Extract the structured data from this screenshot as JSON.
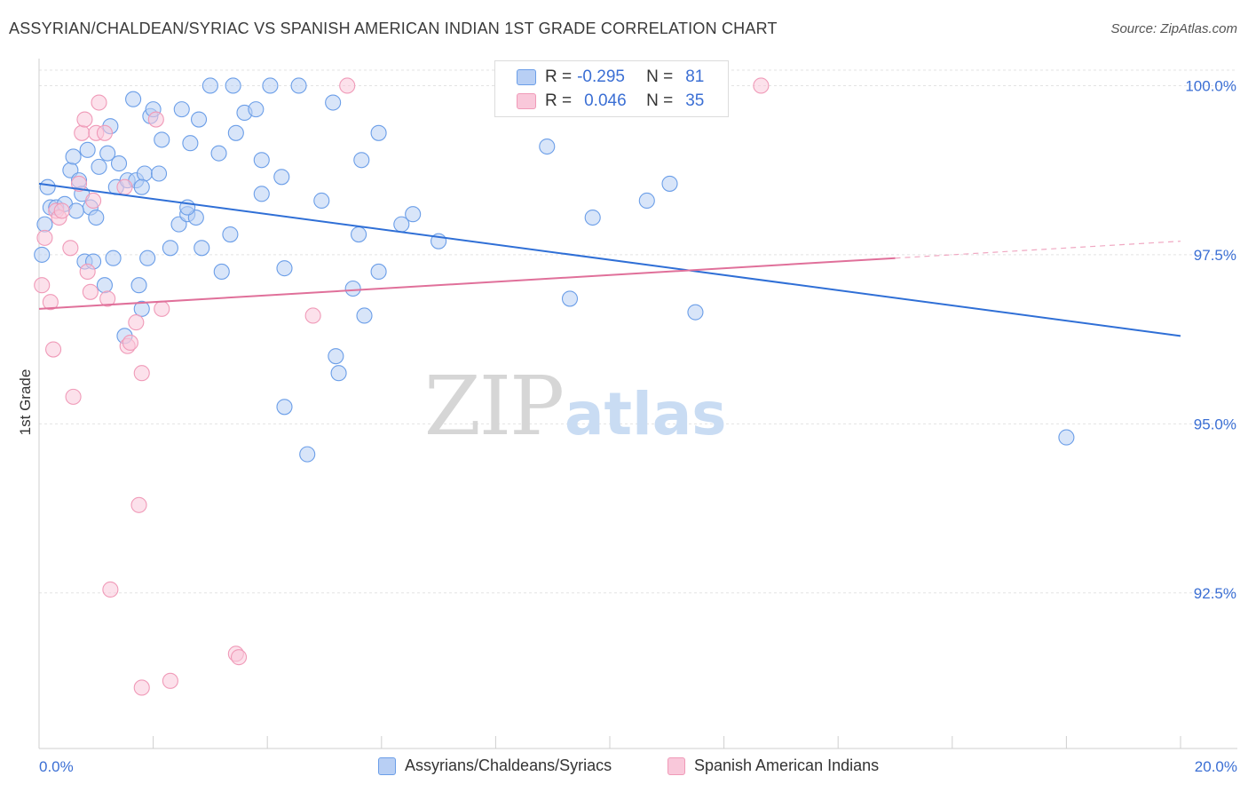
{
  "title": "ASSYRIAN/CHALDEAN/SYRIAC VS SPANISH AMERICAN INDIAN 1ST GRADE CORRELATION CHART",
  "source": "Source: ZipAtlas.com",
  "watermark": {
    "zip": "ZIP",
    "atlas": "atlas"
  },
  "stats": {
    "rows": [
      {
        "r_label": "R =",
        "r_value": "-0.295",
        "n_label": "N =",
        "n_value": "81",
        "color": "#6b9ee8",
        "fill": "#b8cff4"
      },
      {
        "r_label": "R =",
        "r_value": "0.046",
        "n_label": "N =",
        "n_value": "35",
        "color": "#f09ab8",
        "fill": "#f9c8da"
      }
    ]
  },
  "legend": {
    "items": [
      {
        "label": "Assyrians/Chaldeans/Syriacs",
        "color": "#6b9ee8",
        "fill": "#b8cff4"
      },
      {
        "label": "Spanish American Indians",
        "color": "#f09ab8",
        "fill": "#f9c8da"
      }
    ]
  },
  "chart_data": {
    "type": "scatter",
    "title": "ASSYRIAN/CHALDEAN/SYRIAC VS SPANISH AMERICAN INDIAN 1ST GRADE CORRELATION CHART",
    "xlabel": "",
    "ylabel": "1st Grade",
    "xlim": [
      0,
      20
    ],
    "ylim": [
      90.2,
      100.4
    ],
    "x_tick_labels": [
      {
        "value": 0,
        "label": "0.0%"
      },
      {
        "value": 20,
        "label": "20.0%"
      }
    ],
    "y_tick_labels": [
      {
        "value": 100,
        "label": "100.0%"
      },
      {
        "value": 97.5,
        "label": "97.5%"
      },
      {
        "value": 95,
        "label": "95.0%"
      },
      {
        "value": 92.5,
        "label": "92.5%"
      }
    ],
    "x_minor_ticks": [
      0,
      2,
      4,
      6,
      8,
      10,
      12,
      14,
      16,
      18,
      20
    ],
    "series": [
      {
        "name": "Assyrians/Chaldeans/Syriacs",
        "color": "#6b9ee8",
        "fill": "#b8cff4",
        "trend": {
          "x0": 0,
          "y0": 98.55,
          "x1": 20,
          "y1": 96.3
        },
        "points": [
          [
            0.15,
            98.5
          ],
          [
            0.2,
            98.2
          ],
          [
            0.3,
            98.2
          ],
          [
            0.45,
            98.25
          ],
          [
            0.55,
            98.75
          ],
          [
            0.6,
            98.95
          ],
          [
            0.7,
            98.6
          ],
          [
            0.75,
            98.4
          ],
          [
            0.8,
            97.4
          ],
          [
            0.85,
            99.05
          ],
          [
            0.9,
            98.2
          ],
          [
            0.95,
            97.4
          ],
          [
            1.0,
            98.05
          ],
          [
            1.05,
            98.8
          ],
          [
            1.15,
            97.05
          ],
          [
            1.2,
            99.0
          ],
          [
            1.25,
            99.4
          ],
          [
            1.3,
            97.45
          ],
          [
            1.35,
            98.5
          ],
          [
            1.4,
            98.85
          ],
          [
            1.5,
            96.3
          ],
          [
            1.55,
            98.6
          ],
          [
            1.65,
            99.8
          ],
          [
            1.7,
            98.6
          ],
          [
            1.75,
            97.05
          ],
          [
            1.8,
            96.7
          ],
          [
            1.85,
            98.7
          ],
          [
            1.9,
            97.45
          ],
          [
            1.95,
            99.55
          ],
          [
            2.0,
            99.65
          ],
          [
            2.1,
            98.7
          ],
          [
            2.15,
            99.2
          ],
          [
            2.3,
            97.6
          ],
          [
            2.45,
            97.95
          ],
          [
            2.5,
            99.65
          ],
          [
            2.6,
            98.1
          ],
          [
            2.65,
            99.15
          ],
          [
            2.75,
            98.05
          ],
          [
            2.8,
            99.5
          ],
          [
            2.85,
            97.6
          ],
          [
            3.0,
            100.0
          ],
          [
            3.15,
            99.0
          ],
          [
            3.2,
            97.25
          ],
          [
            3.35,
            97.8
          ],
          [
            3.4,
            100.0
          ],
          [
            3.45,
            99.3
          ],
          [
            3.6,
            99.6
          ],
          [
            3.8,
            99.65
          ],
          [
            3.9,
            98.9
          ],
          [
            4.05,
            100.0
          ],
          [
            4.25,
            98.65
          ],
          [
            4.3,
            97.3
          ],
          [
            4.3,
            95.25
          ],
          [
            4.55,
            100.0
          ],
          [
            4.7,
            94.55
          ],
          [
            4.95,
            98.3
          ],
          [
            5.15,
            99.75
          ],
          [
            5.2,
            96.0
          ],
          [
            5.25,
            95.75
          ],
          [
            5.5,
            97.0
          ],
          [
            5.6,
            97.8
          ],
          [
            5.65,
            98.9
          ],
          [
            5.7,
            96.6
          ],
          [
            5.95,
            99.3
          ],
          [
            5.95,
            97.25
          ],
          [
            6.35,
            97.95
          ],
          [
            6.55,
            98.1
          ],
          [
            7.0,
            97.7
          ],
          [
            8.9,
            99.1
          ],
          [
            9.3,
            96.85
          ],
          [
            9.7,
            98.05
          ],
          [
            10.65,
            98.3
          ],
          [
            11.05,
            98.55
          ],
          [
            11.5,
            96.65
          ],
          [
            18.0,
            94.8
          ],
          [
            0.05,
            97.5
          ],
          [
            0.1,
            97.95
          ],
          [
            0.65,
            98.15
          ],
          [
            1.8,
            98.5
          ],
          [
            2.6,
            98.2
          ],
          [
            3.9,
            98.4
          ]
        ]
      },
      {
        "name": "Spanish American Indians",
        "color": "#f09ab8",
        "fill": "#f9c8da",
        "trend": {
          "x0": 0,
          "y0": 96.7,
          "x1": 15,
          "y1": 97.45
        },
        "trend_ext": {
          "x0": 15,
          "y0": 97.45,
          "x1": 20,
          "y1": 97.7
        },
        "points": [
          [
            0.05,
            97.05
          ],
          [
            0.1,
            97.75
          ],
          [
            0.2,
            96.8
          ],
          [
            0.25,
            96.1
          ],
          [
            0.3,
            98.15
          ],
          [
            0.35,
            98.05
          ],
          [
            0.55,
            97.6
          ],
          [
            0.6,
            95.4
          ],
          [
            0.7,
            98.55
          ],
          [
            0.75,
            99.3
          ],
          [
            0.8,
            99.5
          ],
          [
            0.85,
            97.25
          ],
          [
            0.9,
            96.95
          ],
          [
            0.95,
            98.3
          ],
          [
            1.0,
            99.3
          ],
          [
            1.05,
            99.75
          ],
          [
            1.15,
            99.3
          ],
          [
            1.2,
            96.85
          ],
          [
            1.25,
            92.55
          ],
          [
            1.5,
            98.5
          ],
          [
            1.55,
            96.15
          ],
          [
            1.6,
            96.2
          ],
          [
            1.7,
            96.5
          ],
          [
            1.75,
            93.8
          ],
          [
            1.8,
            95.75
          ],
          [
            1.8,
            91.1
          ],
          [
            2.05,
            99.5
          ],
          [
            2.15,
            96.7
          ],
          [
            2.3,
            91.2
          ],
          [
            3.45,
            91.6
          ],
          [
            3.5,
            91.55
          ],
          [
            4.8,
            96.6
          ],
          [
            5.4,
            100.0
          ],
          [
            12.65,
            100.0
          ],
          [
            0.4,
            98.15
          ]
        ]
      }
    ]
  }
}
